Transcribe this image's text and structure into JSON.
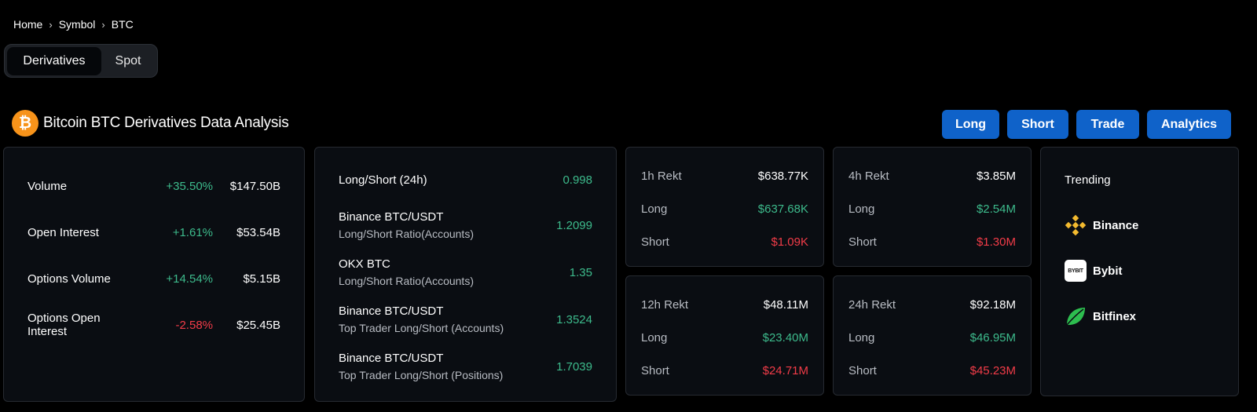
{
  "breadcrumb": [
    "Home",
    "Symbol",
    "BTC"
  ],
  "tabs": [
    "Derivatives",
    "Spot"
  ],
  "header": {
    "title": "Bitcoin BTC Derivatives Data Analysis",
    "logo_glyph": "₿",
    "logo_color": "#f7931a"
  },
  "actions": [
    "Long",
    "Short",
    "Trade",
    "Analytics"
  ],
  "overview": [
    {
      "label": "Volume",
      "change": "+35.50%",
      "value": "$147.50B",
      "trend": "up"
    },
    {
      "label": "Open Interest",
      "change": "+1.61%",
      "value": "$53.54B",
      "trend": "up"
    },
    {
      "label": "Options Volume",
      "change": "+14.54%",
      "value": "$5.15B",
      "trend": "up"
    },
    {
      "label": "Options Open Interest",
      "change": "-2.58%",
      "value": "$25.45B",
      "trend": "down"
    }
  ],
  "ratios": {
    "headline": {
      "label": "Long/Short (24h)",
      "value": "0.998"
    },
    "items": [
      {
        "name": "Binance BTC/USDT",
        "sub": "Long/Short Ratio(Accounts)",
        "value": "1.2099"
      },
      {
        "name": "OKX BTC",
        "sub": "Long/Short Ratio(Accounts)",
        "value": "1.35"
      },
      {
        "name": "Binance BTC/USDT",
        "sub": "Top Trader Long/Short (Accounts)",
        "value": "1.3524"
      },
      {
        "name": "Binance BTC/USDT",
        "sub": "Top Trader Long/Short (Positions)",
        "value": "1.7039"
      }
    ]
  },
  "rekt": [
    {
      "period": "1h Rekt",
      "total": "$638.77K",
      "long_label": "Long",
      "long": "$637.68K",
      "short_label": "Short",
      "short": "$1.09K"
    },
    {
      "period": "4h Rekt",
      "total": "$3.85M",
      "long_label": "Long",
      "long": "$2.54M",
      "short_label": "Short",
      "short": "$1.30M"
    },
    {
      "period": "12h Rekt",
      "total": "$48.11M",
      "long_label": "Long",
      "long": "$23.40M",
      "short_label": "Short",
      "short": "$24.71M"
    },
    {
      "period": "24h Rekt",
      "total": "$92.18M",
      "long_label": "Long",
      "long": "$46.95M",
      "short_label": "Short",
      "short": "$45.23M"
    }
  ],
  "trending": {
    "title": "Trending",
    "exchanges": [
      {
        "name": "Binance",
        "icon": "binance-icon",
        "color": "#f3ba2f"
      },
      {
        "name": "Bybit",
        "icon": "bybit-icon",
        "badge": "BYBIT"
      },
      {
        "name": "Bitfinex",
        "icon": "bitfinex-icon",
        "color": "#2dbd4f"
      }
    ]
  }
}
